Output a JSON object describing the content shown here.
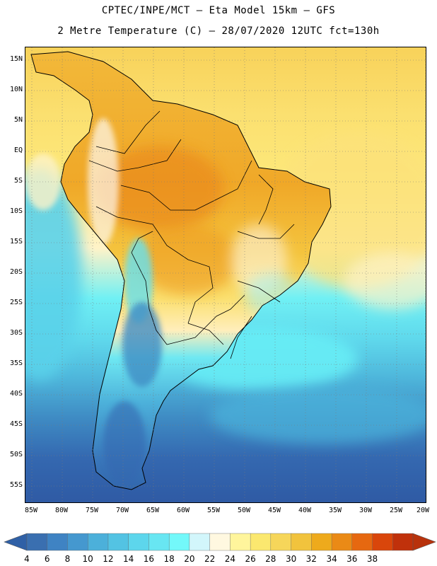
{
  "header": {
    "title_line1": "CPTEC/INPE/MCT –  Eta Model 15km – GFS",
    "title_line2": "2 Metre Temperature (C) – 28/07/2020 12UTC fct=130h"
  },
  "map": {
    "region": "South America",
    "variable": "2 Metre Temperature",
    "units": "C",
    "lat_ticks": [
      "15N",
      "10N",
      "5N",
      "EQ",
      "5S",
      "10S",
      "15S",
      "20S",
      "25S",
      "30S",
      "35S",
      "40S",
      "45S",
      "50S",
      "55S"
    ],
    "lon_ticks": [
      "85W",
      "80W",
      "75W",
      "70W",
      "65W",
      "60W",
      "55W",
      "50W",
      "45W",
      "40W",
      "35W",
      "30W",
      "25W",
      "20W"
    ]
  },
  "colorbar": {
    "labels": [
      "4",
      "6",
      "8",
      "10",
      "12",
      "14",
      "16",
      "18",
      "20",
      "22",
      "24",
      "26",
      "28",
      "30",
      "32",
      "34",
      "36",
      "38"
    ],
    "colors": [
      "#3a6fb0",
      "#3f83c3",
      "#4598cf",
      "#4cb0da",
      "#53c3e3",
      "#5dd6ec",
      "#68e6f2",
      "#73f8fa",
      "#d2f6fb",
      "#fff8e0",
      "#fff59c",
      "#fbe86f",
      "#f6d65a",
      "#f1c33d",
      "#eeaa1c",
      "#ea8a16",
      "#e66810",
      "#d9460b",
      "#c0310b"
    ],
    "low_extend_color": "#2f60a6",
    "high_extend_color": "#b8320c"
  }
}
